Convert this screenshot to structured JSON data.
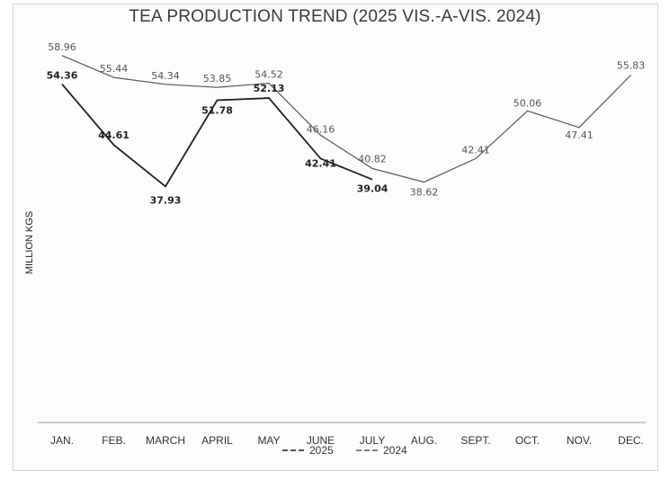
{
  "chart_data": {
    "type": "line",
    "title": "TEA PRODUCTION TREND (2025 VIS.-A-VIS. 2024)",
    "ylabel": "MILLION KGS",
    "xlabel": "",
    "categories": [
      "JAN.",
      "FEB.",
      "MARCH",
      "APRIL",
      "MAY",
      "JUNE",
      "JULY",
      "AUG.",
      "SEPT.",
      "OCT.",
      "NOV.",
      "DEC."
    ],
    "ylim": [
      0,
      65
    ],
    "grid": false,
    "legend_position": "bottom",
    "series": [
      {
        "name": "2025",
        "values": [
          54.36,
          44.61,
          37.93,
          51.78,
          52.13,
          42.41,
          39.04,
          null,
          null,
          null,
          null,
          null
        ],
        "color": "#1f1f1f"
      },
      {
        "name": "2024",
        "values": [
          58.96,
          55.44,
          54.34,
          53.85,
          54.52,
          46.16,
          40.82,
          38.62,
          42.41,
          50.06,
          47.41,
          55.83
        ],
        "color": "#555555"
      }
    ]
  }
}
